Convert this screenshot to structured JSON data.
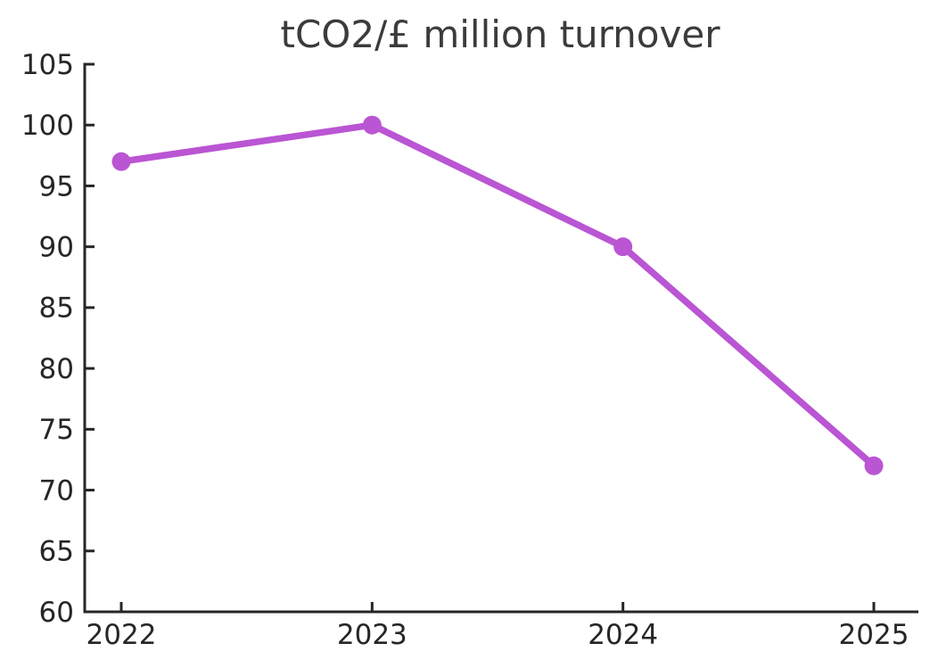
{
  "chart_data": {
    "type": "line",
    "title": "tCO2/£ million turnover",
    "categories": [
      "2022",
      "2023",
      "2024",
      "2025"
    ],
    "values": [
      97,
      100,
      90,
      72
    ],
    "xlabel": "",
    "ylabel": "",
    "ylim": [
      60,
      105
    ],
    "yticks": [
      60,
      65,
      70,
      75,
      80,
      85,
      90,
      95,
      100,
      105
    ],
    "grid": false,
    "legend": "none",
    "line_color": "#BA55D3",
    "marker": "circle",
    "axis_color": "#262626",
    "text_color": "#262626",
    "title_color": "#3b3b3b",
    "background_color": "#ffffff"
  }
}
